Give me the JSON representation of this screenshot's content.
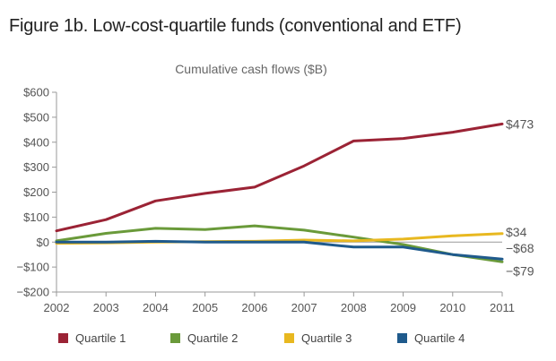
{
  "figure_title": "Figure 1b. Low-cost-quartile funds (conventional and ETF)",
  "chart_data": {
    "type": "line",
    "title": "Cumulative cash flows ($B)",
    "xlabel": "",
    "ylabel": "",
    "x": [
      2002,
      2003,
      2004,
      2005,
      2006,
      2007,
      2008,
      2009,
      2010,
      2011
    ],
    "x_ticks": [
      "2002",
      "2003",
      "2004",
      "2005",
      "2006",
      "2007",
      "2008",
      "2009",
      "2010",
      "2011"
    ],
    "ylim": [
      -200,
      600
    ],
    "y_ticks": [
      -200,
      -100,
      0,
      100,
      200,
      300,
      400,
      500,
      600
    ],
    "y_tick_labels": [
      "−$200",
      "−$100",
      "$0",
      "$100",
      "$200",
      "$300",
      "$400",
      "$500",
      "$600"
    ],
    "grid": false,
    "legend": "bottom",
    "series": [
      {
        "name": "Quartile 1",
        "color": "#9b2335",
        "values": [
          45,
          90,
          165,
          195,
          220,
          305,
          405,
          415,
          440,
          473
        ],
        "end_label": "$473"
      },
      {
        "name": "Quartile 2",
        "color": "#6a9a3a",
        "values": [
          5,
          35,
          55,
          50,
          65,
          48,
          20,
          -10,
          -50,
          -79
        ],
        "end_label": "−$79"
      },
      {
        "name": "Quartile 3",
        "color": "#e8b820",
        "values": [
          -5,
          -3,
          0,
          2,
          3,
          8,
          5,
          12,
          25,
          34
        ],
        "end_label": "$34"
      },
      {
        "name": "Quartile 4",
        "color": "#1f5a8c",
        "values": [
          0,
          0,
          3,
          0,
          0,
          0,
          -20,
          -20,
          -50,
          -68
        ],
        "end_label": "−$68"
      }
    ]
  }
}
